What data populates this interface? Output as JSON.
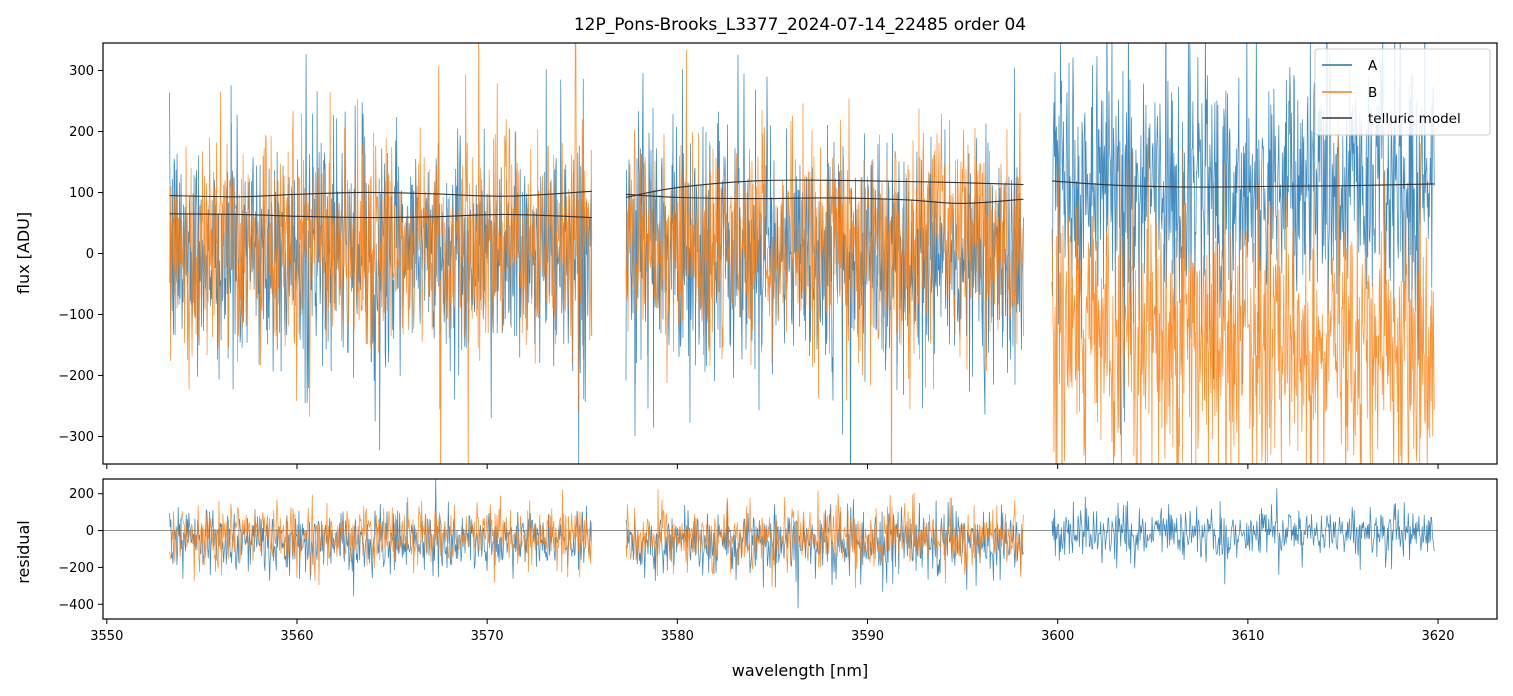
{
  "chart_data": [
    {
      "type": "line",
      "title": "12P_Pons-Brooks_L3377_2024-07-14_22485  order 04",
      "xlabel": "",
      "ylabel": "flux [ADU]",
      "xlim": [
        3549.8,
        3623.1
      ],
      "ylim": [
        -345,
        345
      ],
      "yticks": [
        -300,
        -200,
        -100,
        0,
        100,
        200,
        300
      ],
      "ytick_labels": [
        "−300",
        "−200",
        "−100",
        "0",
        "100",
        "200",
        "300"
      ],
      "xticks": [
        3550,
        3560,
        3570,
        3580,
        3590,
        3600,
        3610,
        3620
      ],
      "legend": {
        "placement": "top-right",
        "entries": [
          "A",
          "B",
          "telluric model"
        ]
      },
      "segments": [
        {
          "x": [
            3553.3,
            3575.5
          ],
          "A": {
            "center": 0,
            "noise_sd": 95
          },
          "B": {
            "center": 15,
            "noise_sd": 90
          },
          "telluric": [
            {
              "x": [
                3553.3,
                3557,
                3560,
                3563.5,
                3567,
                3571,
                3575.5
              ],
              "y": [
                95,
                93,
                97,
                100,
                98,
                94,
                102
              ]
            },
            {
              "x": [
                3553.3,
                3557,
                3560,
                3563.5,
                3567,
                3571,
                3575.5
              ],
              "y": [
                65,
                64,
                61,
                59,
                60,
                64,
                59
              ]
            }
          ]
        },
        {
          "x": [
            3577.3,
            3598.2
          ],
          "A": {
            "center": 0,
            "noise_sd": 95
          },
          "B": {
            "center": 15,
            "noise_sd": 90
          },
          "telluric": [
            {
              "x": [
                3577.3,
                3580,
                3584,
                3588,
                3592,
                3595,
                3598.2
              ],
              "y": [
                92,
                108,
                119,
                120,
                118,
                116,
                113
              ]
            },
            {
              "x": [
                3577.3,
                3580,
                3584,
                3588,
                3592,
                3595,
                3598.2
              ],
              "y": [
                97,
                92,
                90,
                91,
                88,
                82,
                89
              ]
            }
          ]
        },
        {
          "x": [
            3599.7,
            3619.8
          ],
          "A": {
            "center": 105,
            "noise_sd": 105
          },
          "B": {
            "center": -140,
            "noise_sd": 110
          },
          "telluric": [
            {
              "x": [
                3599.7,
                3603,
                3607,
                3611,
                3615,
                3619.8
              ],
              "y": [
                119,
                112,
                109,
                110,
                111,
                114
              ]
            }
          ]
        }
      ],
      "series": [
        {
          "name": "A",
          "color": "#1f77b4"
        },
        {
          "name": "B",
          "color": "#ff7f0e"
        },
        {
          "name": "telluric model",
          "color": "#333333"
        }
      ]
    },
    {
      "type": "line",
      "title": "",
      "xlabel": "wavelength [nm]",
      "ylabel": "residual",
      "xlim": [
        3549.8,
        3623.1
      ],
      "ylim": [
        -480,
        280
      ],
      "yticks": [
        -400,
        -200,
        0,
        200
      ],
      "ytick_labels": [
        "−400",
        "−200",
        "0",
        "200"
      ],
      "xticks": [
        3550,
        3560,
        3570,
        3580,
        3590,
        3600,
        3610,
        3620
      ],
      "xtick_labels": [
        "3550",
        "3560",
        "3570",
        "3580",
        "3590",
        "3600",
        "3610",
        "3620"
      ],
      "zero_line": 0,
      "segments": [
        {
          "x": [
            3553.3,
            3575.5
          ],
          "A": {
            "center": -60,
            "noise_sd": 80
          },
          "B": {
            "center": -30,
            "noise_sd": 80
          }
        },
        {
          "x": [
            3577.3,
            3598.2
          ],
          "A": {
            "center": -60,
            "noise_sd": 85
          },
          "B": {
            "center": -35,
            "noise_sd": 85
          }
        },
        {
          "x": [
            3599.7,
            3619.8
          ],
          "A": {
            "center": -10,
            "noise_sd": 70
          }
        }
      ]
    }
  ]
}
